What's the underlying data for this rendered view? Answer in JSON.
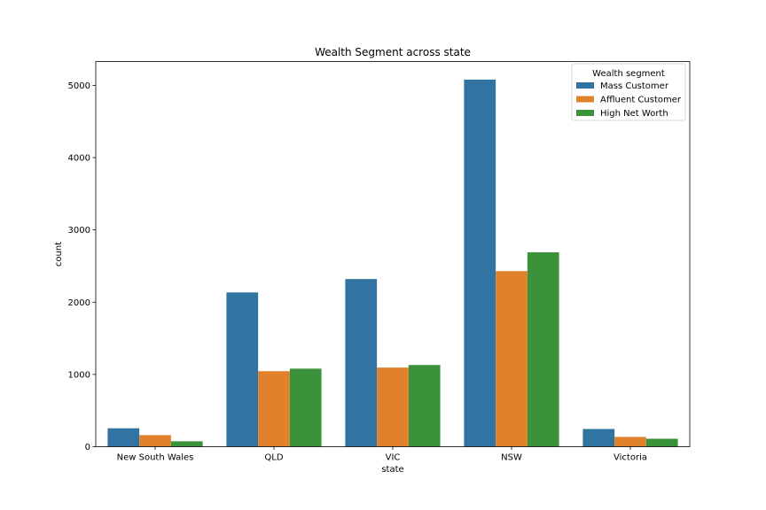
{
  "chart_data": {
    "type": "bar",
    "title": "Wealth Segment across state",
    "xlabel": "state",
    "ylabel": "count",
    "categories": [
      "New South Wales",
      "QLD",
      "VIC",
      "NSW",
      "Victoria"
    ],
    "series": [
      {
        "name": "Mass Customer",
        "color": "#3274a1",
        "values": [
          255,
          2135,
          2320,
          5080,
          245
        ]
      },
      {
        "name": "Affluent Customer",
        "color": "#e1812c",
        "values": [
          160,
          1045,
          1095,
          2430,
          135
        ]
      },
      {
        "name": "High Net Worth",
        "color": "#3a923a",
        "values": [
          75,
          1080,
          1130,
          2690,
          110
        ]
      }
    ],
    "ylim": [
      0,
      5330
    ],
    "yticks": [
      0,
      1000,
      2000,
      3000,
      4000,
      5000
    ],
    "grid": false,
    "legend": {
      "title": "Wealth segment",
      "placement": "top-right"
    }
  }
}
